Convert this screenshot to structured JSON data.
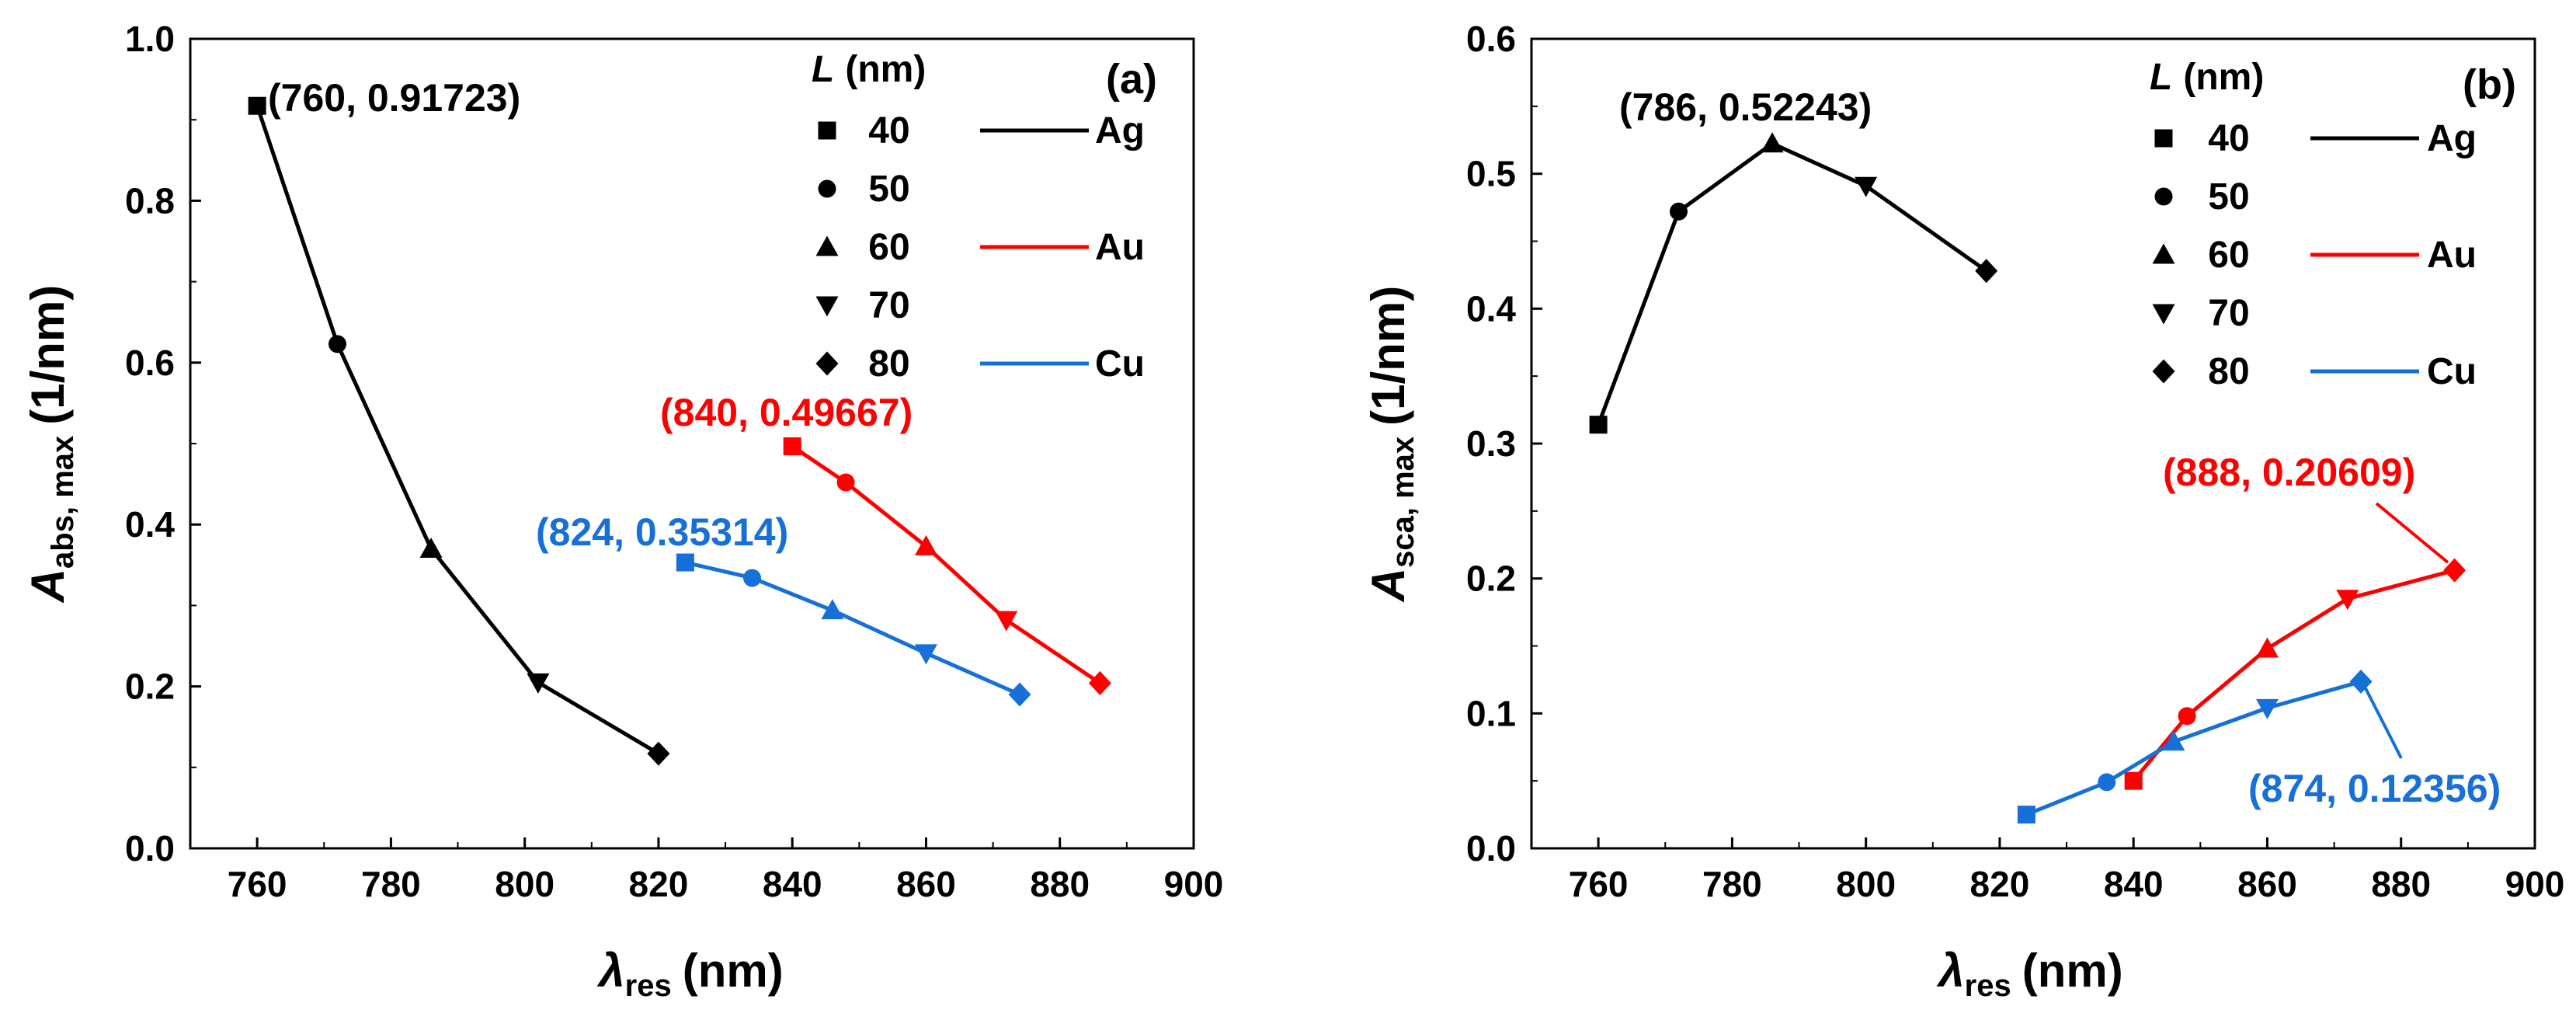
{
  "chart_data": [
    {
      "panel": "(a)",
      "type": "line",
      "xlabel": {
        "symbol": "λ",
        "sub": "res",
        "unit": "(nm)"
      },
      "ylabel": {
        "symbol": "A",
        "sub": "abs, max",
        "unit": "(1/nm)"
      },
      "xlim": [
        750,
        900
      ],
      "ylim": [
        0,
        1.0
      ],
      "xticks": [
        760,
        780,
        800,
        820,
        840,
        860,
        880,
        900
      ],
      "xtick_labels": [
        "760",
        "780",
        "800",
        "820",
        "840",
        "860",
        "880",
        "900"
      ],
      "yticks": [
        0.0,
        0.2,
        0.4,
        0.6,
        0.8,
        1.0
      ],
      "ytick_labels": [
        "0.0",
        "0.2",
        "0.4",
        "0.6",
        "0.8",
        "1.0"
      ],
      "series": [
        {
          "name": "Ag",
          "color": "#000000",
          "x": [
            760,
            772,
            786,
            802,
            820
          ],
          "y": [
            0.91723,
            0.623,
            0.37,
            0.205,
            0.117
          ]
        },
        {
          "name": "Au",
          "color": "#ff0000",
          "x": [
            840,
            848,
            860,
            872,
            886
          ],
          "y": [
            0.49667,
            0.452,
            0.373,
            0.282,
            0.204
          ]
        },
        {
          "name": "Cu",
          "color": "#1670d8",
          "x": [
            824,
            834,
            846,
            860,
            874
          ],
          "y": [
            0.35314,
            0.334,
            0.294,
            0.241,
            0.19
          ]
        }
      ],
      "markers": [
        "square",
        "circle",
        "triangle-up",
        "triangle-down",
        "diamond"
      ],
      "annotations": [
        {
          "text": "(760, 0.91723)",
          "color": "#000000"
        },
        {
          "text": "(840, 0.49667)",
          "color": "#ff0000"
        },
        {
          "text": "(824, 0.35314)",
          "color": "#1670d8"
        }
      ]
    },
    {
      "panel": "(b)",
      "type": "line",
      "xlabel": {
        "symbol": "λ",
        "sub": "res",
        "unit": "(nm)"
      },
      "ylabel": {
        "symbol": "A",
        "sub": "sca, max",
        "unit": "(1/nm)"
      },
      "xlim": [
        750,
        900
      ],
      "ylim": [
        0,
        0.6
      ],
      "xticks": [
        760,
        780,
        800,
        820,
        840,
        860,
        880,
        900
      ],
      "xtick_labels": [
        "760",
        "780",
        "800",
        "820",
        "840",
        "860",
        "880",
        "900"
      ],
      "yticks": [
        0.0,
        0.1,
        0.2,
        0.3,
        0.4,
        0.5,
        0.6
      ],
      "ytick_labels": [
        "0.0",
        "0.1",
        "0.2",
        "0.3",
        "0.4",
        "0.5",
        "0.6"
      ],
      "series": [
        {
          "name": "Ag",
          "color": "#000000",
          "x": [
            760,
            772,
            786,
            800,
            818
          ],
          "y": [
            0.314,
            0.472,
            0.52243,
            0.491,
            0.428
          ]
        },
        {
          "name": "Au",
          "color": "#ff0000",
          "x": [
            840,
            848,
            860,
            872,
            888
          ],
          "y": [
            0.05,
            0.098,
            0.148,
            0.185,
            0.20609
          ]
        },
        {
          "name": "Cu",
          "color": "#1670d8",
          "x": [
            824,
            836,
            846,
            860,
            874
          ],
          "y": [
            0.025,
            0.049,
            0.079,
            0.104,
            0.12356
          ]
        }
      ],
      "markers": [
        "square",
        "circle",
        "triangle-up",
        "triangle-down",
        "diamond"
      ],
      "annotations": [
        {
          "text": "(786, 0.52243)",
          "color": "#000000"
        },
        {
          "text": "(888, 0.20609)",
          "color": "#ff0000"
        },
        {
          "text": "(874, 0.12356)",
          "color": "#1670d8"
        }
      ]
    }
  ],
  "legend": {
    "title_symbol": "L",
    "title_unit": "(nm)",
    "sizes": [
      "40",
      "50",
      "60",
      "70",
      "80"
    ],
    "materials": [
      {
        "name": "Ag",
        "color": "#000000"
      },
      {
        "name": "Au",
        "color": "#ff0000"
      },
      {
        "name": "Cu",
        "color": "#1670d8"
      }
    ]
  }
}
